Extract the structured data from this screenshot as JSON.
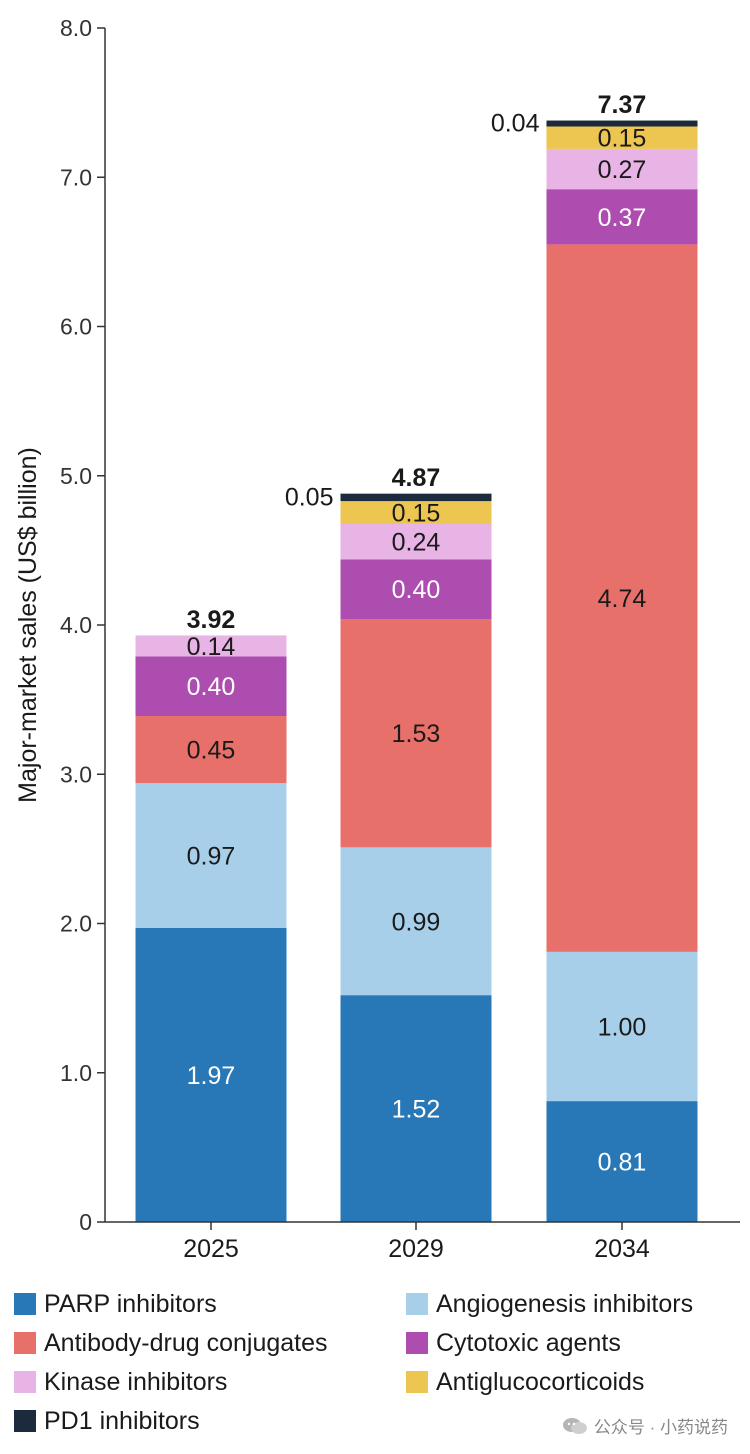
{
  "chart_data": {
    "type": "bar",
    "stacked": true,
    "ylabel": "Major-market sales (US$ billion)",
    "ylim": [
      0,
      8.0
    ],
    "yticks": [
      "0",
      "1.0",
      "2.0",
      "3.0",
      "4.0",
      "5.0",
      "6.0",
      "7.0",
      "8.0"
    ],
    "ytick_values": [
      0,
      1,
      2,
      3,
      4,
      5,
      6,
      7,
      8
    ],
    "categories": [
      "2025",
      "2029",
      "2034"
    ],
    "totals": [
      3.92,
      4.87,
      7.37
    ],
    "total_labels": [
      "3.92",
      "4.87",
      "7.37"
    ],
    "series": [
      {
        "name": "PARP inhibitors",
        "color": "#2878b8",
        "text_color": "#ffffff",
        "values": [
          1.97,
          1.52,
          0.81
        ],
        "labels": [
          "1.97",
          "1.52",
          "0.81"
        ]
      },
      {
        "name": "Angiogenesis inhibitors",
        "color": "#a8cfea",
        "text_color": "#1a1a1a",
        "values": [
          0.97,
          0.99,
          1.0
        ],
        "labels": [
          "0.97",
          "0.99",
          "1.00"
        ]
      },
      {
        "name": "Antibody-drug conjugates",
        "color": "#e8706a",
        "text_color": "#1a1a1a",
        "values": [
          0.45,
          1.53,
          4.74
        ],
        "labels": [
          "0.45",
          "1.53",
          "4.74"
        ]
      },
      {
        "name": "Cytotoxic agents",
        "color": "#ad4db0",
        "text_color": "#ffffff",
        "values": [
          0.4,
          0.4,
          0.37
        ],
        "labels": [
          "0.40",
          "0.40",
          "0.37"
        ]
      },
      {
        "name": "Kinase inhibitors",
        "color": "#e8b3e5",
        "text_color": "#1a1a1a",
        "values": [
          0.14,
          0.24,
          0.27
        ],
        "labels": [
          "0.14",
          "0.24",
          "0.27"
        ]
      },
      {
        "name": "Antiglucocorticoids",
        "color": "#edc652",
        "text_color": "#1a1a1a",
        "values": [
          0,
          0.15,
          0.15
        ],
        "labels": [
          "",
          "0.15",
          "0.15"
        ]
      },
      {
        "name": "PD1 inhibitors",
        "color": "#1c2a3e",
        "text_color": "#1a1a1a",
        "values": [
          0,
          0.05,
          0.04
        ],
        "labels": [
          "",
          "0.05",
          "0.04"
        ],
        "label_outside": true
      }
    ],
    "legend_position": "bottom"
  },
  "legend": {
    "items": [
      {
        "label": "PARP inhibitors",
        "color": "#2878b8"
      },
      {
        "label": "Angiogenesis inhibitors",
        "color": "#a8cfea"
      },
      {
        "label": "Antibody-drug conjugates",
        "color": "#e8706a"
      },
      {
        "label": "Cytotoxic agents",
        "color": "#ad4db0"
      },
      {
        "label": "Kinase inhibitors",
        "color": "#e8b3e5"
      },
      {
        "label": "Antiglucocorticoids",
        "color": "#edc652"
      },
      {
        "label": "PD1 inhibitors",
        "color": "#1c2a3e"
      }
    ]
  },
  "watermark": {
    "text": "公众号 · 小药说药",
    "icon": "wechat-icon"
  }
}
